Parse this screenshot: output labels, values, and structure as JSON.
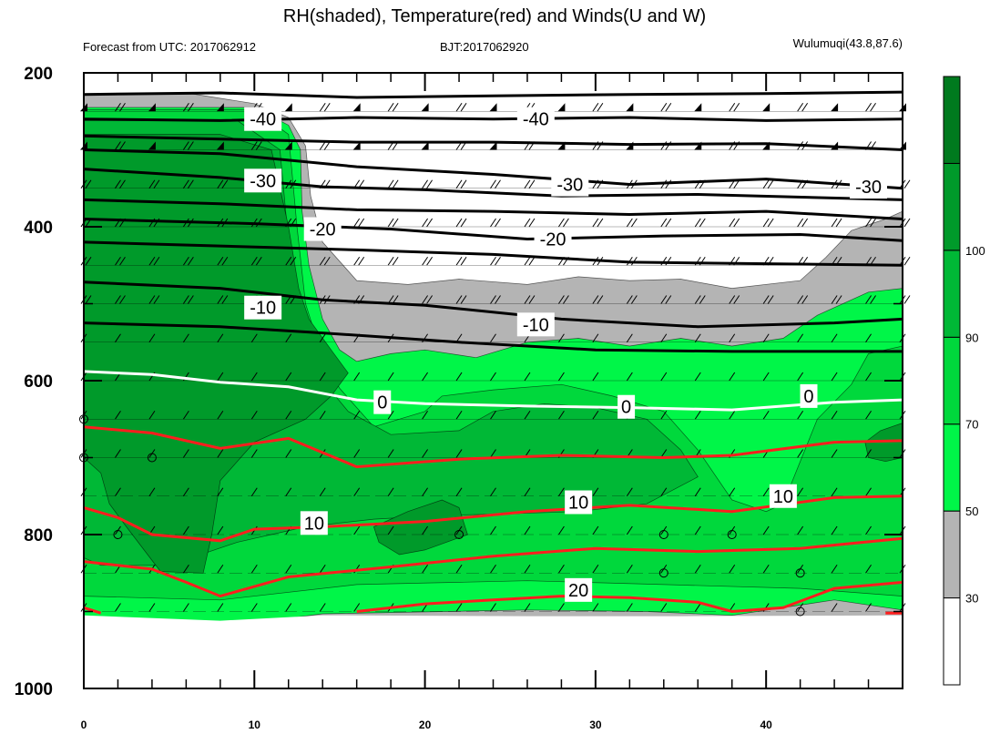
{
  "chart_data": {
    "type": "heatmap",
    "title": "RH(shaded), Temperature(red) and Winds(U and W)",
    "subtitle_left": "Forecast from UTC: 2017062912",
    "subtitle_center": "BJT:2017062920",
    "subtitle_right": "Wulumuqi(43.8,87.6)",
    "x_ticks": [
      "0",
      "10",
      "20",
      "30",
      "40"
    ],
    "x_range": [
      0,
      48
    ],
    "y_ticks": [
      "200",
      "400",
      "600",
      "800",
      "1000"
    ],
    "y_range": [
      200,
      1000
    ],
    "colorbar": {
      "labels": [
        "30",
        "50",
        "70",
        "90",
        "100"
      ],
      "colors": [
        "#ffffff",
        "#b4b4b4",
        "#00f648",
        "#00d83c",
        "#00b836",
        "#009a2a",
        "#007a1e"
      ]
    },
    "temperature_contours": [
      {
        "value": "-40",
        "label_positions": [
          [
            10.5,
            260
          ],
          [
            26.5,
            260
          ]
        ]
      },
      {
        "value": "-30",
        "label_positions": [
          [
            10.5,
            340
          ],
          [
            28.5,
            345
          ],
          [
            46,
            348
          ]
        ]
      },
      {
        "value": "-20",
        "label_positions": [
          [
            14,
            403
          ],
          [
            27.5,
            416
          ]
        ]
      },
      {
        "value": "-10",
        "label_positions": [
          [
            10.5,
            505
          ],
          [
            26.5,
            527
          ]
        ]
      },
      {
        "value": "0",
        "label_positions": [
          [
            17.5,
            628
          ],
          [
            31.8,
            634
          ],
          [
            42.5,
            620
          ]
        ]
      },
      {
        "value": "10",
        "label_positions": [
          [
            13.5,
            785
          ],
          [
            29,
            758
          ],
          [
            41,
            750
          ]
        ]
      },
      {
        "value": "20",
        "label_positions": [
          [
            29,
            872
          ]
        ]
      }
    ]
  }
}
